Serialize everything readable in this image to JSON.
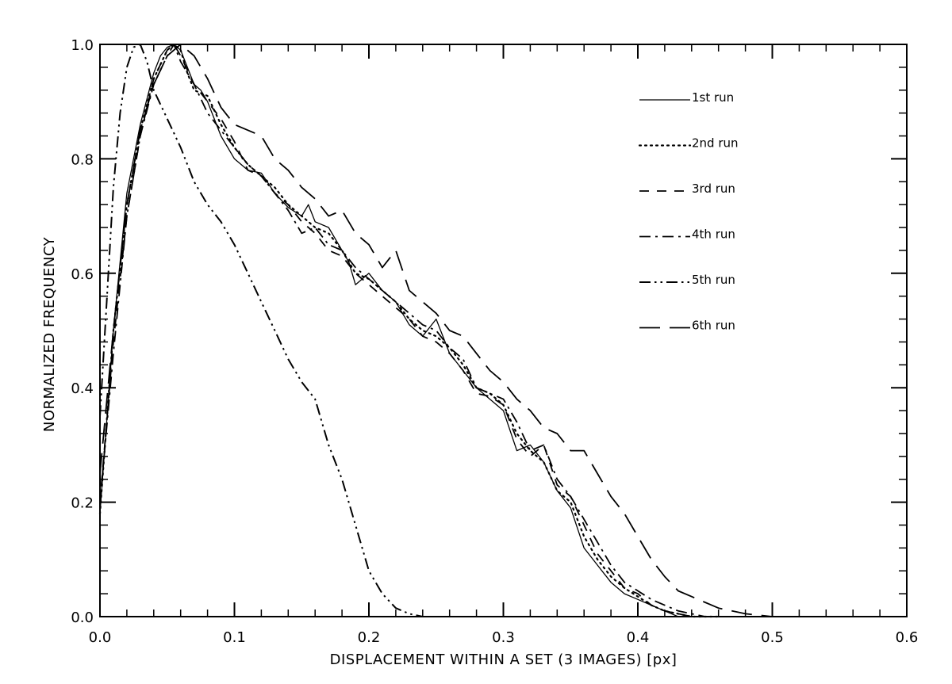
{
  "chart_data": {
    "type": "line",
    "title": "",
    "xlabel": "DISPLACEMENT WITHIN A SET (3 IMAGES) [px]",
    "ylabel": "NORMALIZED FREQUENCY",
    "xlim": [
      0.0,
      0.6
    ],
    "ylim": [
      0.0,
      1.0
    ],
    "x_ticks": [
      "0.0",
      "0.1",
      "0.2",
      "0.3",
      "0.4",
      "0.5",
      "0.6"
    ],
    "y_ticks": [
      "0.0",
      "0.2",
      "0.4",
      "0.6",
      "0.8",
      "1.0"
    ],
    "grid": false,
    "legend_position": "top-right",
    "line_color": "#000000",
    "series": [
      {
        "name": "1st run",
        "style": "solid",
        "points": [
          [
            0.0,
            0.18
          ],
          [
            0.01,
            0.5
          ],
          [
            0.02,
            0.74
          ],
          [
            0.03,
            0.86
          ],
          [
            0.04,
            0.95
          ],
          [
            0.045,
            0.98
          ],
          [
            0.05,
            0.995
          ],
          [
            0.055,
            1.0
          ],
          [
            0.06,
            0.99
          ],
          [
            0.065,
            0.96
          ],
          [
            0.07,
            0.93
          ],
          [
            0.075,
            0.92
          ],
          [
            0.08,
            0.9
          ],
          [
            0.085,
            0.87
          ],
          [
            0.09,
            0.84
          ],
          [
            0.1,
            0.8
          ],
          [
            0.11,
            0.78
          ],
          [
            0.12,
            0.775
          ],
          [
            0.13,
            0.74
          ],
          [
            0.14,
            0.715
          ],
          [
            0.15,
            0.7
          ],
          [
            0.155,
            0.72
          ],
          [
            0.16,
            0.69
          ],
          [
            0.17,
            0.68
          ],
          [
            0.18,
            0.64
          ],
          [
            0.185,
            0.62
          ],
          [
            0.19,
            0.58
          ],
          [
            0.2,
            0.6
          ],
          [
            0.21,
            0.57
          ],
          [
            0.22,
            0.55
          ],
          [
            0.23,
            0.51
          ],
          [
            0.24,
            0.49
          ],
          [
            0.25,
            0.52
          ],
          [
            0.26,
            0.46
          ],
          [
            0.27,
            0.43
          ],
          [
            0.28,
            0.4
          ],
          [
            0.29,
            0.38
          ],
          [
            0.3,
            0.36
          ],
          [
            0.31,
            0.29
          ],
          [
            0.32,
            0.3
          ],
          [
            0.33,
            0.27
          ],
          [
            0.34,
            0.22
          ],
          [
            0.35,
            0.19
          ],
          [
            0.36,
            0.12
          ],
          [
            0.37,
            0.09
          ],
          [
            0.38,
            0.06
          ],
          [
            0.39,
            0.04
          ],
          [
            0.4,
            0.03
          ],
          [
            0.41,
            0.02
          ],
          [
            0.42,
            0.01
          ],
          [
            0.43,
            0.0
          ],
          [
            0.45,
            0.0
          ]
        ]
      },
      {
        "name": "2nd run",
        "style": "dotted",
        "points": [
          [
            0.0,
            0.18
          ],
          [
            0.01,
            0.5
          ],
          [
            0.02,
            0.72
          ],
          [
            0.03,
            0.85
          ],
          [
            0.04,
            0.94
          ],
          [
            0.05,
            0.99
          ],
          [
            0.055,
            1.0
          ],
          [
            0.06,
            0.99
          ],
          [
            0.065,
            0.95
          ],
          [
            0.07,
            0.92
          ],
          [
            0.08,
            0.91
          ],
          [
            0.09,
            0.86
          ],
          [
            0.1,
            0.82
          ],
          [
            0.11,
            0.79
          ],
          [
            0.12,
            0.77
          ],
          [
            0.13,
            0.75
          ],
          [
            0.14,
            0.72
          ],
          [
            0.15,
            0.7
          ],
          [
            0.16,
            0.68
          ],
          [
            0.17,
            0.67
          ],
          [
            0.18,
            0.64
          ],
          [
            0.19,
            0.6
          ],
          [
            0.2,
            0.59
          ],
          [
            0.21,
            0.57
          ],
          [
            0.22,
            0.55
          ],
          [
            0.23,
            0.52
          ],
          [
            0.24,
            0.5
          ],
          [
            0.25,
            0.49
          ],
          [
            0.26,
            0.47
          ],
          [
            0.27,
            0.44
          ],
          [
            0.28,
            0.4
          ],
          [
            0.29,
            0.39
          ],
          [
            0.3,
            0.37
          ],
          [
            0.31,
            0.32
          ],
          [
            0.32,
            0.29
          ],
          [
            0.33,
            0.27
          ],
          [
            0.34,
            0.22
          ],
          [
            0.35,
            0.2
          ],
          [
            0.36,
            0.14
          ],
          [
            0.37,
            0.1
          ],
          [
            0.38,
            0.07
          ],
          [
            0.39,
            0.05
          ],
          [
            0.4,
            0.035
          ],
          [
            0.41,
            0.02
          ],
          [
            0.42,
            0.01
          ],
          [
            0.43,
            0.005
          ],
          [
            0.44,
            0.0
          ],
          [
            0.46,
            0.0
          ]
        ]
      },
      {
        "name": "3rd run",
        "style": "dashed",
        "points": [
          [
            0.0,
            0.2
          ],
          [
            0.01,
            0.48
          ],
          [
            0.02,
            0.7
          ],
          [
            0.03,
            0.84
          ],
          [
            0.04,
            0.94
          ],
          [
            0.05,
            0.99
          ],
          [
            0.055,
            1.0
          ],
          [
            0.06,
            0.98
          ],
          [
            0.07,
            0.93
          ],
          [
            0.08,
            0.9
          ],
          [
            0.09,
            0.87
          ],
          [
            0.1,
            0.83
          ],
          [
            0.11,
            0.78
          ],
          [
            0.12,
            0.77
          ],
          [
            0.13,
            0.74
          ],
          [
            0.14,
            0.72
          ],
          [
            0.15,
            0.69
          ],
          [
            0.16,
            0.67
          ],
          [
            0.17,
            0.64
          ],
          [
            0.18,
            0.63
          ],
          [
            0.19,
            0.6
          ],
          [
            0.2,
            0.58
          ],
          [
            0.21,
            0.56
          ],
          [
            0.22,
            0.54
          ],
          [
            0.23,
            0.52
          ],
          [
            0.24,
            0.49
          ],
          [
            0.25,
            0.48
          ],
          [
            0.26,
            0.46
          ],
          [
            0.27,
            0.43
          ],
          [
            0.28,
            0.39
          ],
          [
            0.29,
            0.385
          ],
          [
            0.3,
            0.37
          ],
          [
            0.31,
            0.31
          ],
          [
            0.32,
            0.28
          ],
          [
            0.33,
            0.3
          ],
          [
            0.34,
            0.23
          ],
          [
            0.35,
            0.21
          ],
          [
            0.36,
            0.16
          ],
          [
            0.37,
            0.11
          ],
          [
            0.38,
            0.08
          ],
          [
            0.39,
            0.05
          ],
          [
            0.4,
            0.04
          ],
          [
            0.41,
            0.02
          ],
          [
            0.42,
            0.01
          ],
          [
            0.43,
            0.005
          ],
          [
            0.44,
            0.0
          ],
          [
            0.46,
            0.0
          ]
        ]
      },
      {
        "name": "4th run",
        "style": "dashdot",
        "points": [
          [
            0.0,
            0.2
          ],
          [
            0.01,
            0.46
          ],
          [
            0.02,
            0.7
          ],
          [
            0.03,
            0.84
          ],
          [
            0.04,
            0.93
          ],
          [
            0.05,
            0.98
          ],
          [
            0.055,
            1.0
          ],
          [
            0.06,
            0.97
          ],
          [
            0.07,
            0.93
          ],
          [
            0.08,
            0.88
          ],
          [
            0.09,
            0.85
          ],
          [
            0.1,
            0.82
          ],
          [
            0.11,
            0.79
          ],
          [
            0.12,
            0.77
          ],
          [
            0.13,
            0.74
          ],
          [
            0.14,
            0.71
          ],
          [
            0.15,
            0.67
          ],
          [
            0.16,
            0.68
          ],
          [
            0.17,
            0.65
          ],
          [
            0.18,
            0.64
          ],
          [
            0.19,
            0.61
          ],
          [
            0.2,
            0.59
          ],
          [
            0.21,
            0.57
          ],
          [
            0.22,
            0.55
          ],
          [
            0.23,
            0.53
          ],
          [
            0.24,
            0.51
          ],
          [
            0.25,
            0.5
          ],
          [
            0.26,
            0.47
          ],
          [
            0.27,
            0.45
          ],
          [
            0.28,
            0.4
          ],
          [
            0.29,
            0.39
          ],
          [
            0.3,
            0.38
          ],
          [
            0.31,
            0.34
          ],
          [
            0.32,
            0.29
          ],
          [
            0.33,
            0.3
          ],
          [
            0.34,
            0.24
          ],
          [
            0.35,
            0.21
          ],
          [
            0.36,
            0.17
          ],
          [
            0.37,
            0.13
          ],
          [
            0.38,
            0.09
          ],
          [
            0.39,
            0.06
          ],
          [
            0.4,
            0.045
          ],
          [
            0.41,
            0.03
          ],
          [
            0.42,
            0.02
          ],
          [
            0.43,
            0.01
          ],
          [
            0.44,
            0.005
          ],
          [
            0.45,
            0.0
          ],
          [
            0.47,
            0.0
          ]
        ]
      },
      {
        "name": "5th run",
        "style": "dashdotdot",
        "points": [
          [
            0.0,
            0.35
          ],
          [
            0.005,
            0.55
          ],
          [
            0.01,
            0.75
          ],
          [
            0.015,
            0.88
          ],
          [
            0.02,
            0.96
          ],
          [
            0.025,
            0.995
          ],
          [
            0.03,
            1.0
          ],
          [
            0.035,
            0.97
          ],
          [
            0.04,
            0.92
          ],
          [
            0.05,
            0.87
          ],
          [
            0.06,
            0.82
          ],
          [
            0.07,
            0.76
          ],
          [
            0.08,
            0.72
          ],
          [
            0.09,
            0.69
          ],
          [
            0.1,
            0.65
          ],
          [
            0.11,
            0.6
          ],
          [
            0.12,
            0.55
          ],
          [
            0.13,
            0.5
          ],
          [
            0.14,
            0.45
          ],
          [
            0.15,
            0.41
          ],
          [
            0.16,
            0.38
          ],
          [
            0.17,
            0.3
          ],
          [
            0.18,
            0.24
          ],
          [
            0.19,
            0.16
          ],
          [
            0.2,
            0.08
          ],
          [
            0.21,
            0.04
          ],
          [
            0.22,
            0.015
          ],
          [
            0.23,
            0.005
          ],
          [
            0.24,
            0.0
          ],
          [
            0.26,
            0.0
          ]
        ]
      },
      {
        "name": "6th run",
        "style": "longdash",
        "points": [
          [
            0.0,
            0.25
          ],
          [
            0.01,
            0.5
          ],
          [
            0.02,
            0.72
          ],
          [
            0.03,
            0.85
          ],
          [
            0.04,
            0.93
          ],
          [
            0.05,
            0.98
          ],
          [
            0.06,
            1.0
          ],
          [
            0.07,
            0.98
          ],
          [
            0.08,
            0.94
          ],
          [
            0.09,
            0.89
          ],
          [
            0.1,
            0.86
          ],
          [
            0.11,
            0.85
          ],
          [
            0.12,
            0.84
          ],
          [
            0.13,
            0.8
          ],
          [
            0.14,
            0.78
          ],
          [
            0.15,
            0.75
          ],
          [
            0.16,
            0.73
          ],
          [
            0.17,
            0.7
          ],
          [
            0.18,
            0.71
          ],
          [
            0.19,
            0.67
          ],
          [
            0.2,
            0.65
          ],
          [
            0.21,
            0.61
          ],
          [
            0.22,
            0.64
          ],
          [
            0.23,
            0.57
          ],
          [
            0.24,
            0.55
          ],
          [
            0.25,
            0.53
          ],
          [
            0.26,
            0.5
          ],
          [
            0.27,
            0.49
          ],
          [
            0.28,
            0.46
          ],
          [
            0.29,
            0.43
          ],
          [
            0.3,
            0.41
          ],
          [
            0.31,
            0.38
          ],
          [
            0.32,
            0.36
          ],
          [
            0.33,
            0.33
          ],
          [
            0.34,
            0.32
          ],
          [
            0.35,
            0.29
          ],
          [
            0.36,
            0.29
          ],
          [
            0.37,
            0.25
          ],
          [
            0.38,
            0.21
          ],
          [
            0.39,
            0.18
          ],
          [
            0.4,
            0.14
          ],
          [
            0.41,
            0.1
          ],
          [
            0.42,
            0.07
          ],
          [
            0.43,
            0.045
          ],
          [
            0.44,
            0.035
          ],
          [
            0.45,
            0.025
          ],
          [
            0.46,
            0.015
          ],
          [
            0.47,
            0.01
          ],
          [
            0.48,
            0.005
          ],
          [
            0.5,
            0.0
          ],
          [
            0.55,
            0.0
          ]
        ]
      }
    ]
  }
}
